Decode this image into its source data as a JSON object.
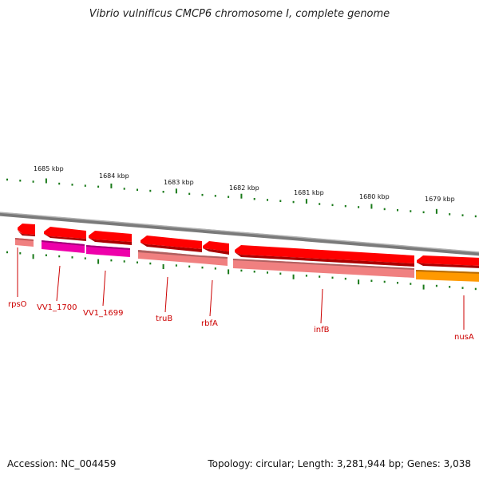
{
  "title": "Vibrio vulnificus CMCP6 chromosome I, complete genome",
  "footer": {
    "accession": "Accession: NC_004459",
    "summary": "Topology: circular; Length: 3,281,944 bp; Genes: 3,038"
  },
  "map": {
    "kbp_labels": [
      "1685 kbp",
      "1684 kbp",
      "1683 kbp",
      "1682 kbp",
      "1681 kbp",
      "1680 kbp",
      "1679 kbp"
    ],
    "gene_labels": [
      "rpsO",
      "VV1_1700",
      "VV1_1699",
      "truB",
      "rbfA",
      "infB",
      "nusA"
    ],
    "colors": {
      "backbone": "#888888",
      "cds_arrow": "#ff0000",
      "gene_pink": "#f08080",
      "gene_magenta": "#ee00aa",
      "gene_orange": "#ff9900",
      "ticks": "#1a7a1a",
      "label": "#cc0000"
    }
  }
}
